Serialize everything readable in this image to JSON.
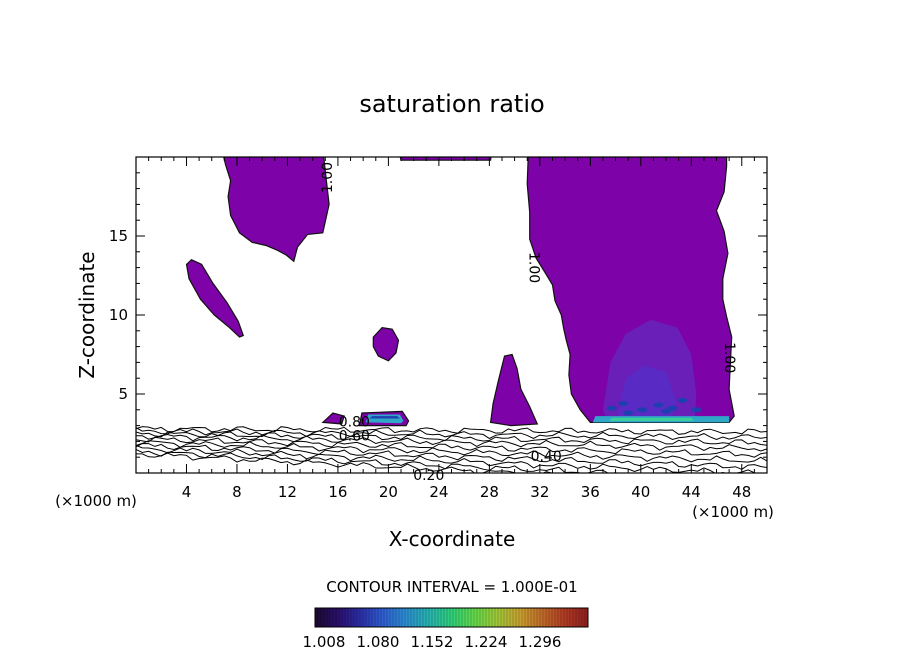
{
  "chart_data": {
    "type": "contour",
    "title": "saturation ratio",
    "xlabel": "X-coordinate",
    "ylabel": "Z-coordinate",
    "x_unit_left": "(×1000 m)",
    "x_unit_right": "(×1000 m)",
    "xlim": [
      0,
      50
    ],
    "ylim": [
      0,
      20
    ],
    "x_ticks": [
      4,
      8,
      12,
      16,
      20,
      24,
      28,
      32,
      36,
      40,
      44,
      48
    ],
    "y_ticks": [
      5,
      10,
      15
    ],
    "contour_interval_label": "CONTOUR INTERVAL = 1.000E-01",
    "contour_labels": [
      {
        "text": "1.00",
        "x": 15.2,
        "z": 18.7,
        "rotate": -90
      },
      {
        "text": "1.00",
        "x": 31.5,
        "z": 13.0,
        "rotate": 90
      },
      {
        "text": "1.00",
        "x": 47.0,
        "z": 7.3,
        "rotate": 90
      },
      {
        "text": "0.80",
        "x": 17.3,
        "z": 3.2,
        "rotate": 0
      },
      {
        "text": "0.60",
        "x": 17.3,
        "z": 2.3,
        "rotate": 0
      },
      {
        "text": "0.40",
        "x": 32.5,
        "z": 1.0,
        "rotate": 0
      },
      {
        "text": "0.20",
        "x": 23.2,
        "z": -0.2,
        "rotate": 0
      }
    ],
    "colorbar": {
      "ticks": [
        "1.008",
        "1.080",
        "1.152",
        "1.224",
        "1.296"
      ],
      "colors": [
        "#1b0a2e",
        "#2a0f6a",
        "#2b2ea8",
        "#2f5fd1",
        "#2b8dcf",
        "#27b3b0",
        "#2fcf7a",
        "#62d84a",
        "#a0c838",
        "#c8a030",
        "#c06a28",
        "#b03a24",
        "#8e1f1f"
      ]
    },
    "fill_color": "#7d03a8",
    "fill_color_inner": "#6a1fb8",
    "highlight_colors": [
      "#2fa8c8",
      "#3ad09a",
      "#1f3fb0"
    ]
  }
}
